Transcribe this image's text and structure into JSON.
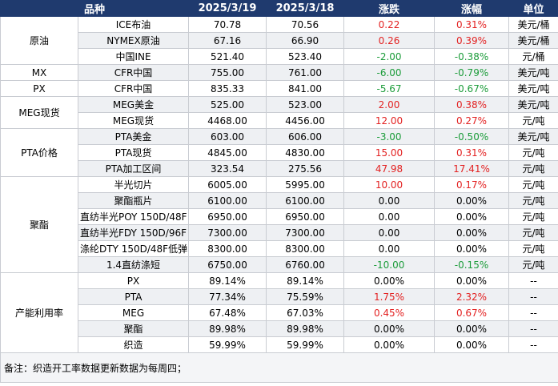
{
  "header": {
    "col1": "品种",
    "col2": "2025/3/19",
    "col3": "2025/3/18",
    "col4": "涨跌",
    "col5": "涨幅",
    "col6": "单位"
  },
  "groups": [
    {
      "name": "原油",
      "rows": [
        {
          "item": "ICE布油",
          "d1": "70.78",
          "d2": "70.56",
          "chg": "0.22",
          "pct": "0.31%",
          "unit": "美元/桶",
          "dir": "up"
        },
        {
          "item": "NYMEX原油",
          "d1": "67.16",
          "d2": "66.90",
          "chg": "0.26",
          "pct": "0.39%",
          "unit": "美元/桶",
          "dir": "up"
        },
        {
          "item": "中国INE",
          "d1": "521.40",
          "d2": "523.40",
          "chg": "-2.00",
          "pct": "-0.38%",
          "unit": "元/桶",
          "dir": "down"
        }
      ]
    },
    {
      "name": "MX",
      "rows": [
        {
          "item": "CFR中国",
          "d1": "755.00",
          "d2": "761.00",
          "chg": "-6.00",
          "pct": "-0.79%",
          "unit": "美元/吨",
          "dir": "down"
        }
      ]
    },
    {
      "name": "PX",
      "rows": [
        {
          "item": "CFR中国",
          "d1": "835.33",
          "d2": "841.00",
          "chg": "-5.67",
          "pct": "-0.67%",
          "unit": "美元/吨",
          "dir": "down"
        }
      ]
    },
    {
      "name": "MEG现货",
      "rows": [
        {
          "item": "MEG美金",
          "d1": "525.00",
          "d2": "523.00",
          "chg": "2.00",
          "pct": "0.38%",
          "unit": "美元/吨",
          "dir": "up"
        },
        {
          "item": "MEG现货",
          "d1": "4468.00",
          "d2": "4456.00",
          "chg": "12.00",
          "pct": "0.27%",
          "unit": "元/吨",
          "dir": "up"
        }
      ]
    },
    {
      "name": "PTA价格",
      "rows": [
        {
          "item": "PTA美金",
          "d1": "603.00",
          "d2": "606.00",
          "chg": "-3.00",
          "pct": "-0.50%",
          "unit": "美元/吨",
          "dir": "down"
        },
        {
          "item": "PTA现货",
          "d1": "4845.00",
          "d2": "4830.00",
          "chg": "15.00",
          "pct": "0.31%",
          "unit": "元/吨",
          "dir": "up"
        },
        {
          "item": "PTA加工区间",
          "d1": "323.54",
          "d2": "275.56",
          "chg": "47.98",
          "pct": "17.41%",
          "unit": "元/吨",
          "dir": "up"
        }
      ]
    },
    {
      "name": "聚酯",
      "rows": [
        {
          "item": "半光切片",
          "d1": "6005.00",
          "d2": "5995.00",
          "chg": "10.00",
          "pct": "0.17%",
          "unit": "元/吨",
          "dir": "up"
        },
        {
          "item": "聚酯瓶片",
          "d1": "6100.00",
          "d2": "6100.00",
          "chg": "0.00",
          "pct": "0.00%",
          "unit": "元/吨",
          "dir": "flat"
        },
        {
          "item": "直纺半光POY 150D/48F",
          "d1": "6950.00",
          "d2": "6950.00",
          "chg": "0.00",
          "pct": "0.00%",
          "unit": "元/吨",
          "dir": "flat"
        },
        {
          "item": "直纺半光FDY 150D/96F",
          "d1": "7300.00",
          "d2": "7300.00",
          "chg": "0.00",
          "pct": "0.00%",
          "unit": "元/吨",
          "dir": "flat"
        },
        {
          "item": "涤纶DTY 150D/48F低弹",
          "d1": "8300.00",
          "d2": "8300.00",
          "chg": "0.00",
          "pct": "0.00%",
          "unit": "元/吨",
          "dir": "flat"
        },
        {
          "item": "1.4直纺涤短",
          "d1": "6750.00",
          "d2": "6760.00",
          "chg": "-10.00",
          "pct": "-0.15%",
          "unit": "元/吨",
          "dir": "down"
        }
      ]
    },
    {
      "name": "产能利用率",
      "rows": [
        {
          "item": "PX",
          "d1": "89.14%",
          "d2": "89.14%",
          "chg": "0.00%",
          "pct": "0.00%",
          "unit": "--",
          "dir": "flat"
        },
        {
          "item": "PTA",
          "d1": "77.34%",
          "d2": "75.59%",
          "chg": "1.75%",
          "pct": "2.32%",
          "unit": "--",
          "dir": "up"
        },
        {
          "item": "MEG",
          "d1": "67.48%",
          "d2": "67.03%",
          "chg": "0.45%",
          "pct": "0.67%",
          "unit": "--",
          "dir": "up"
        },
        {
          "item": "聚酯",
          "d1": "89.98%",
          "d2": "89.98%",
          "chg": "0.00%",
          "pct": "0.00%",
          "unit": "--",
          "dir": "flat"
        },
        {
          "item": "织造",
          "d1": "59.99%",
          "d2": "59.99%",
          "chg": "0.00%",
          "pct": "0.00%",
          "unit": "--",
          "dir": "flat"
        }
      ]
    }
  ],
  "note": "备注：织造开工率数据更新数据为每周四；",
  "colors": {
    "header_bg": "#1f3a6e",
    "up": "#e32222",
    "down": "#1c9c3a",
    "alt_row": "#eef0f3"
  }
}
